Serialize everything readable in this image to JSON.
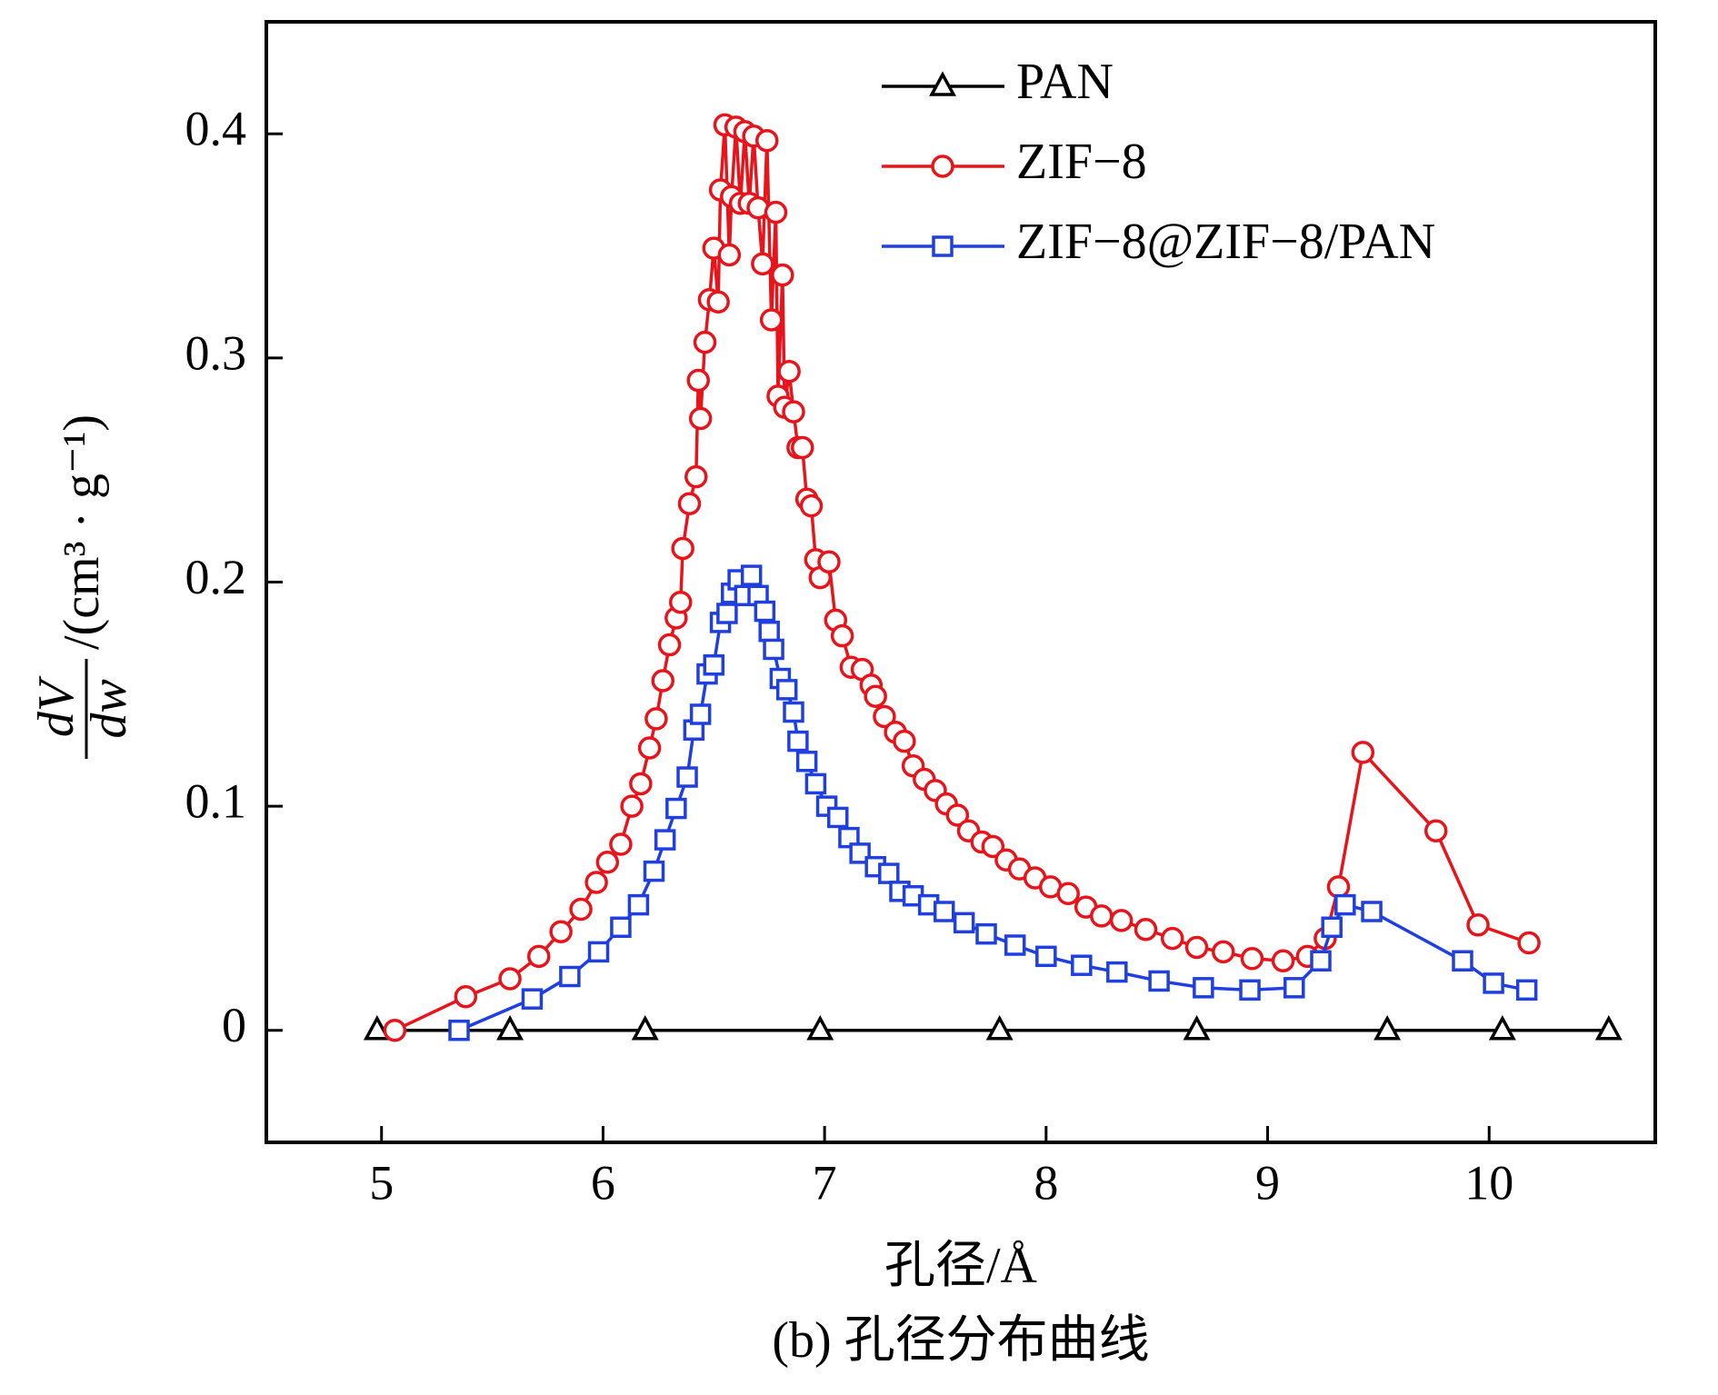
{
  "chart_data": {
    "type": "line",
    "xlabel": "孔径/Å",
    "caption": "(b) 孔径分布曲线",
    "ylabel_numerator": "dV",
    "ylabel_denominator": "dw",
    "ylabel_unit": "/(cm³ · g⁻¹)",
    "xlim": [
      4.48,
      10.75
    ],
    "ylim": [
      -0.05,
      0.45
    ],
    "xticks": [
      5,
      6,
      7,
      8,
      9,
      10
    ],
    "yticks": [
      0,
      0.1,
      0.2,
      0.3,
      0.4
    ],
    "legend": "upper right",
    "series": [
      {
        "name": "PAN",
        "color": "#000000",
        "marker": "triangle",
        "x": [
          4.98,
          5.58,
          6.19,
          6.98,
          7.79,
          8.68,
          9.54,
          10.06,
          10.54
        ],
        "values": [
          0,
          0,
          0,
          0,
          0,
          0,
          0,
          0,
          0
        ]
      },
      {
        "name": "ZIF−8",
        "color": "#e8141b",
        "marker": "circle",
        "x": [
          5.06,
          5.38,
          5.58,
          5.71,
          5.81,
          5.9,
          5.97,
          6.02,
          6.08,
          6.13,
          6.17,
          6.21,
          6.24,
          6.27,
          6.3,
          6.33,
          6.35,
          6.36,
          6.39,
          6.42,
          6.43,
          6.44,
          6.46,
          6.48,
          6.5,
          6.52,
          6.53,
          6.55,
          6.57,
          6.58,
          6.6,
          6.62,
          6.64,
          6.66,
          6.68,
          6.7,
          6.72,
          6.74,
          6.76,
          6.78,
          6.79,
          6.81,
          6.82,
          6.84,
          6.86,
          6.88,
          6.9,
          6.92,
          6.94,
          6.96,
          6.98,
          7.02,
          7.05,
          7.08,
          7.12,
          7.17,
          7.21,
          7.23,
          7.27,
          7.32,
          7.36,
          7.4,
          7.45,
          7.5,
          7.55,
          7.6,
          7.65,
          7.71,
          7.76,
          7.82,
          7.88,
          7.95,
          8.02,
          8.1,
          8.18,
          8.25,
          8.34,
          8.45,
          8.57,
          8.68,
          8.8,
          8.93,
          9.07,
          9.18,
          9.26,
          9.32,
          9.43,
          9.76,
          9.95,
          10.18
        ],
        "values": [
          0,
          0.015,
          0.023,
          0.033,
          0.044,
          0.054,
          0.066,
          0.075,
          0.083,
          0.1,
          0.11,
          0.126,
          0.139,
          0.156,
          0.172,
          0.184,
          0.191,
          0.215,
          0.235,
          0.247,
          0.29,
          0.273,
          0.307,
          0.326,
          0.349,
          0.325,
          0.375,
          0.404,
          0.346,
          0.372,
          0.403,
          0.369,
          0.401,
          0.369,
          0.399,
          0.367,
          0.342,
          0.397,
          0.317,
          0.365,
          0.283,
          0.337,
          0.278,
          0.294,
          0.276,
          0.26,
          0.26,
          0.237,
          0.234,
          0.21,
          0.202,
          0.209,
          0.183,
          0.176,
          0.162,
          0.161,
          0.154,
          0.149,
          0.14,
          0.133,
          0.129,
          0.118,
          0.112,
          0.107,
          0.101,
          0.096,
          0.089,
          0.084,
          0.082,
          0.076,
          0.072,
          0.068,
          0.064,
          0.061,
          0.055,
          0.051,
          0.049,
          0.045,
          0.041,
          0.037,
          0.035,
          0.032,
          0.031,
          0.033,
          0.041,
          0.064,
          0.124,
          0.089,
          0.047,
          0.039
        ]
      },
      {
        "name": "ZIF−8@ZIF−8/PAN",
        "color": "#1f3fe0",
        "marker": "square",
        "x": [
          5.35,
          5.68,
          5.85,
          5.98,
          6.08,
          6.16,
          6.23,
          6.28,
          6.33,
          6.38,
          6.41,
          6.44,
          6.47,
          6.5,
          6.53,
          6.56,
          6.58,
          6.61,
          6.64,
          6.67,
          6.7,
          6.73,
          6.75,
          6.77,
          6.8,
          6.83,
          6.86,
          6.88,
          6.92,
          6.96,
          7.01,
          7.06,
          7.11,
          7.16,
          7.23,
          7.29,
          7.34,
          7.4,
          7.47,
          7.54,
          7.63,
          7.73,
          7.86,
          8.0,
          8.16,
          8.32,
          8.51,
          8.71,
          8.92,
          9.12,
          9.24,
          9.29,
          9.35,
          9.47,
          9.88,
          10.02,
          10.17
        ],
        "values": [
          0,
          0.014,
          0.024,
          0.035,
          0.046,
          0.056,
          0.071,
          0.085,
          0.099,
          0.113,
          0.134,
          0.141,
          0.159,
          0.163,
          0.182,
          0.186,
          0.195,
          0.201,
          0.194,
          0.203,
          0.194,
          0.187,
          0.178,
          0.17,
          0.157,
          0.152,
          0.142,
          0.129,
          0.12,
          0.11,
          0.1,
          0.095,
          0.086,
          0.079,
          0.073,
          0.07,
          0.062,
          0.06,
          0.056,
          0.053,
          0.048,
          0.043,
          0.038,
          0.033,
          0.029,
          0.026,
          0.022,
          0.019,
          0.018,
          0.019,
          0.031,
          0.046,
          0.056,
          0.053,
          0.031,
          0.021,
          0.018
        ]
      }
    ]
  }
}
